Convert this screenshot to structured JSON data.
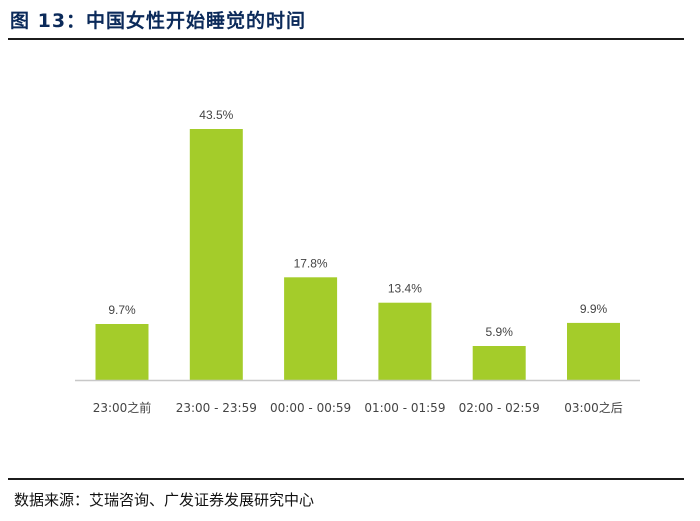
{
  "figure": {
    "title": "图 13：中国女性开始睡觉的时间",
    "source": "数据来源：艾瑞咨询、广发证券发展研究中心"
  },
  "colors": {
    "bar": "#a4cc2a",
    "axis": "#c8c8c8",
    "label": "#444444",
    "title": "#0b2a5a"
  },
  "chart_data": {
    "type": "bar",
    "title": "",
    "xlabel": "",
    "ylabel": "",
    "categories": [
      "23:00之前",
      "23:00 - 23:59",
      "00:00 - 00:59",
      "01:00 - 01:59",
      "02:00 - 02:59",
      "03:00之后"
    ],
    "values": [
      9.7,
      43.5,
      17.8,
      13.4,
      5.9,
      9.9
    ],
    "value_labels": [
      "9.7%",
      "43.5%",
      "17.8%",
      "13.4%",
      "5.9%",
      "9.9%"
    ],
    "unit": "%",
    "ylim": [
      0,
      43.5
    ],
    "grid": false,
    "legend": "none"
  }
}
